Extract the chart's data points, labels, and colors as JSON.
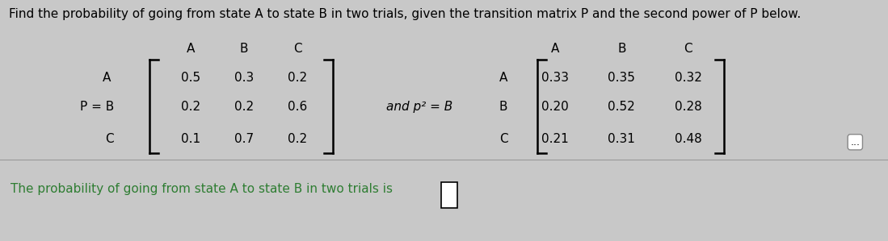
{
  "title": "Find the probability of going from state A to state B in two trials, given the transition matrix P and the second power of P below.",
  "title_fontsize": 11,
  "col_labels": [
    "A",
    "B",
    "C"
  ],
  "matrix_P": [
    [
      "0.5",
      "0.3",
      "0.2"
    ],
    [
      "0.2",
      "0.2",
      "0.6"
    ],
    [
      "0.1",
      "0.7",
      "0.2"
    ]
  ],
  "matrix_P2": [
    [
      "0.33",
      "0.35",
      "0.32"
    ],
    [
      "0.20",
      "0.52",
      "0.28"
    ],
    [
      "0.21",
      "0.31",
      "0.48"
    ]
  ],
  "bottom_text": "The probability of going from state A to state B in two trials is",
  "bg_color": "#c8c8c8",
  "bottom_bg_color": "#d8d8d8",
  "text_color": "#000000",
  "green_color": "#2e7d32"
}
